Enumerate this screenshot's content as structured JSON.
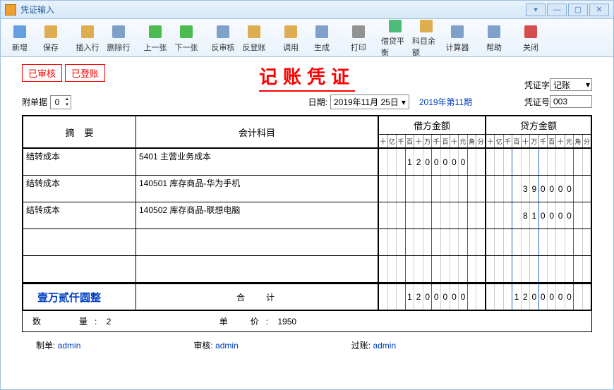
{
  "window": {
    "title": "凭证输入"
  },
  "toolbar": [
    {
      "name": "new",
      "label": "新增",
      "color": "#4a90d9"
    },
    {
      "name": "save",
      "label": "保存",
      "color": "#d9a030"
    },
    {
      "name": "insert",
      "label": "插入行",
      "color": "#d9a030"
    },
    {
      "name": "delete",
      "label": "删除行",
      "color": "#6a90c0"
    },
    {
      "name": "prev",
      "label": "上一张",
      "color": "#30b030"
    },
    {
      "name": "next",
      "label": "下一张",
      "color": "#30b030"
    },
    {
      "name": "unaudit",
      "label": "反审核",
      "color": "#6a90c0"
    },
    {
      "name": "unpost",
      "label": "反登账",
      "color": "#d9a030"
    },
    {
      "name": "call",
      "label": "调用",
      "color": "#d9a030"
    },
    {
      "name": "gen",
      "label": "生成",
      "color": "#6a90c0"
    },
    {
      "name": "print",
      "label": "打印",
      "color": "#808080"
    },
    {
      "name": "balance",
      "label": "借贷平衡",
      "color": "#30b060"
    },
    {
      "name": "subbal",
      "label": "科目余额",
      "color": "#d9a030"
    },
    {
      "name": "calc",
      "label": "计算器",
      "color": "#6a90c0"
    },
    {
      "name": "help",
      "label": "帮助",
      "color": "#6a90c0"
    },
    {
      "name": "close",
      "label": "关闭",
      "color": "#d03030"
    }
  ],
  "stamps": [
    "已审核",
    "已登账"
  ],
  "docTitle": "记账凭证",
  "attach": {
    "label": "附单据",
    "value": "0"
  },
  "date": {
    "label": "日期:",
    "value": "2019年11月 25日"
  },
  "period": "2019年第11期",
  "voucherWord": {
    "label": "凭证字",
    "value": "记账"
  },
  "voucherNo": {
    "label": "凭证号",
    "value": "003"
  },
  "headers": {
    "summary": "摘要",
    "subject": "会计科目",
    "debit": "借方金额",
    "credit": "贷方金额"
  },
  "digitLabels": [
    "十",
    "亿",
    "千",
    "百",
    "十",
    "万",
    "千",
    "百",
    "十",
    "元",
    "角",
    "分"
  ],
  "rows": [
    {
      "summary": "结转成本",
      "subject": "5401 主营业务成本",
      "debit": "1200000",
      "credit": ""
    },
    {
      "summary": "结转成本",
      "subject": "140501 库存商品-华为手机",
      "debit": "",
      "credit": "390000"
    },
    {
      "summary": "结转成本",
      "subject": "140502 库存商品-联想电脑",
      "debit": "",
      "credit": "810000"
    },
    {
      "summary": "",
      "subject": "",
      "debit": "",
      "credit": ""
    },
    {
      "summary": "",
      "subject": "",
      "debit": "",
      "credit": ""
    }
  ],
  "total": {
    "words": "壹万贰仟圆整",
    "label": "合计",
    "debit": "1200000",
    "credit": "1200000"
  },
  "bottom": {
    "qtyLabel": "数量:",
    "qty": "2",
    "priceLabel": "单价:",
    "price": "1950"
  },
  "signers": {
    "maker": {
      "label": "制单:",
      "value": "admin"
    },
    "auditor": {
      "label": "审核:",
      "value": "admin"
    },
    "poster": {
      "label": "过账:",
      "value": "admin"
    }
  }
}
